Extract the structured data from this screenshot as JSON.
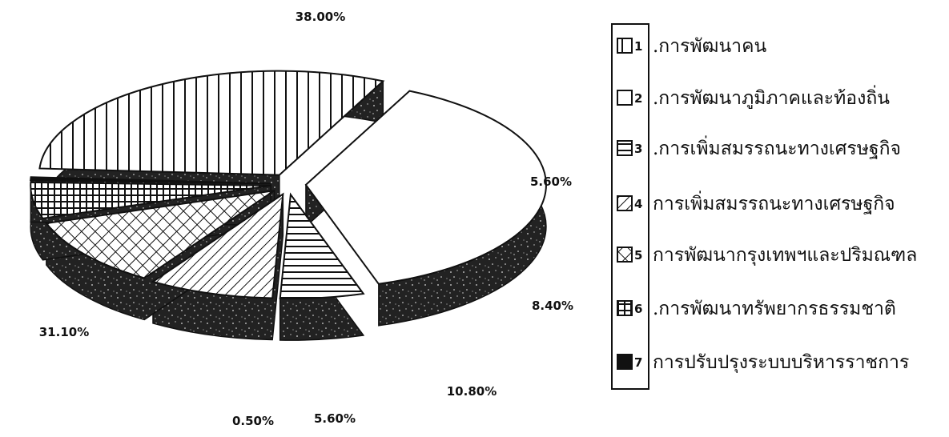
{
  "chart_data": {
    "type": "pie",
    "title": "",
    "legend_position": "right",
    "slices": [
      {
        "id": 1,
        "number": "1",
        "label": ".การพัฒนาคน",
        "value": 31.1,
        "value_label": "31.10%",
        "pattern": "vertical-lines"
      },
      {
        "id": 2,
        "number": "2",
        "label": ".การพัฒนาภูมิภาคและท้องถิ่น",
        "value": 38.0,
        "value_label": "38.00%",
        "pattern": "white"
      },
      {
        "id": 3,
        "number": "3",
        "label": ".การเพิ่มสมรรถนะทางเศรษฐกิจ",
        "value": 5.6,
        "value_label": "5.60%",
        "pattern": "horizontal-lines"
      },
      {
        "id": 4,
        "number": "4",
        "label": "การเพิ่มสมรรถนะทางเศรษฐกิจ",
        "value": 8.4,
        "value_label": "8.40%",
        "pattern": "diagonal-lines"
      },
      {
        "id": 5,
        "number": "5",
        "label": "การพัฒนากรุงเทพฯและปริมณฑล",
        "value": 10.8,
        "value_label": "10.80%",
        "pattern": "crosshatch"
      },
      {
        "id": 6,
        "number": "6",
        "label": ".การพัฒนาทรัพยากรธรรมชาติ",
        "value": 5.6,
        "value_label": "5.60%",
        "pattern": "grid"
      },
      {
        "id": 7,
        "number": "7",
        "label": "การปรับปรุงระบบบริหารราชการ",
        "value": 0.5,
        "value_label": "0.50%",
        "pattern": "solid"
      }
    ]
  },
  "colors": {
    "ink": "#111111",
    "paper": "#ffffff",
    "side": "#2b2b2b"
  }
}
